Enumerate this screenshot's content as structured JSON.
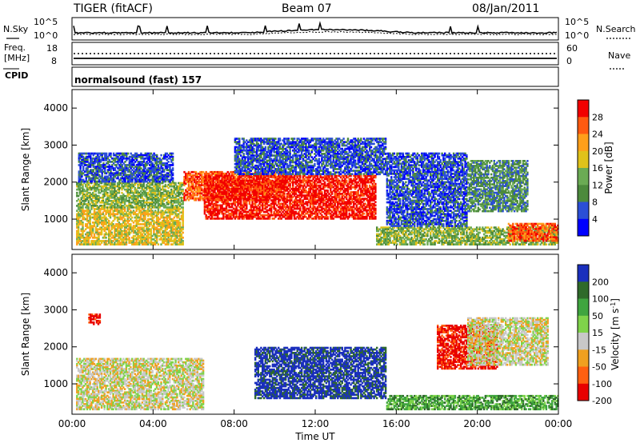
{
  "header": {
    "radar": "TIGER (fitACF)",
    "beam": "Beam 07",
    "date": "08/Jan/2011"
  },
  "side_labels": {
    "nsky": "N.Sky",
    "nsearch": "N.Search",
    "freq": "Freq.",
    "freq_unit": "[MHz]",
    "nave": "Nave",
    "cpid": "CPID"
  },
  "panel_ticks": {
    "noise_left_top": "10^5",
    "noise_left_bottom": "10^0",
    "noise_right_top": "10^5",
    "noise_right_bottom": "10^0",
    "freq_left_top": "18",
    "freq_left_bottom": "8",
    "nave_right_top": "60",
    "nave_right_bottom": "0"
  },
  "cpid_text": "normalsound (fast) 157",
  "chart_data": [
    {
      "type": "heatmap",
      "name": "power",
      "xlabel": "Time UT",
      "ylabel": "Slant Range [km]",
      "x_ticks": [
        "00:00",
        "04:00",
        "08:00",
        "12:00",
        "16:00",
        "20:00",
        "00:00"
      ],
      "xlim_hours": [
        0,
        24
      ],
      "y_ticks": [
        "1000",
        "2000",
        "3000",
        "4000"
      ],
      "ylim": [
        180,
        4500
      ],
      "colorbar": {
        "label": "Power [dB]",
        "ticks": [
          "4",
          "8",
          "12",
          "16",
          "20",
          "24",
          "28"
        ],
        "range": [
          0,
          30
        ],
        "colors": [
          "#0000ff",
          "#2b4fd6",
          "#4c8a3c",
          "#6bab54",
          "#e0c21a",
          "#ff9f1a",
          "#ff5a10",
          "#f20000"
        ]
      },
      "regions": [
        {
          "t": [
            0.2,
            5.5
          ],
          "r": [
            300,
            1300
          ],
          "level": 4
        },
        {
          "t": [
            0.2,
            5.5
          ],
          "r": [
            1300,
            2000
          ],
          "level": 3
        },
        {
          "t": [
            0.3,
            5.0
          ],
          "r": [
            2000,
            2800
          ],
          "level": 1
        },
        {
          "t": [
            5.5,
            10.5
          ],
          "r": [
            1500,
            2300
          ],
          "level": 6
        },
        {
          "t": [
            6.5,
            15.0
          ],
          "r": [
            1000,
            2200
          ],
          "level": 7
        },
        {
          "t": [
            8.0,
            15.5
          ],
          "r": [
            2200,
            3200
          ],
          "level": 1
        },
        {
          "t": [
            15.0,
            24.0
          ],
          "r": [
            300,
            800
          ],
          "level": 3
        },
        {
          "t": [
            21.5,
            24.0
          ],
          "r": [
            400,
            900
          ],
          "level": 6
        },
        {
          "t": [
            15.5,
            19.5
          ],
          "r": [
            800,
            2800
          ],
          "level": 1
        },
        {
          "t": [
            19.5,
            22.5
          ],
          "r": [
            1200,
            2600
          ],
          "level": 2
        }
      ]
    },
    {
      "type": "heatmap",
      "name": "velocity",
      "xlabel": "Time UT",
      "ylabel": "Slant Range [km]",
      "x_ticks": [
        "00:00",
        "04:00",
        "08:00",
        "12:00",
        "16:00",
        "20:00",
        "00:00"
      ],
      "xlim_hours": [
        0,
        24
      ],
      "y_ticks": [
        "1000",
        "2000",
        "3000",
        "4000"
      ],
      "ylim": [
        180,
        4500
      ],
      "colorbar": {
        "label": "Velocity [m s^-1]",
        "ticks": [
          "200",
          "100",
          "50",
          "15",
          "-15",
          "-50",
          "-100",
          "-200"
        ],
        "range": [
          -250,
          250
        ],
        "colors": [
          "#1a2fbd",
          "#2f6a2a",
          "#3fa53f",
          "#7fd34a",
          "#c8c8c8",
          "#f0a020",
          "#ff6010",
          "#e80000"
        ]
      },
      "regions": [
        {
          "t": [
            0.2,
            6.5
          ],
          "r": [
            300,
            1700
          ],
          "level": 4
        },
        {
          "t": [
            9.0,
            15.5
          ],
          "r": [
            600,
            2000
          ],
          "level": 0
        },
        {
          "t": [
            15.5,
            24.0
          ],
          "r": [
            300,
            700
          ],
          "level": 2
        },
        {
          "t": [
            18.0,
            21.0
          ],
          "r": [
            1400,
            2600
          ],
          "level": 7
        },
        {
          "t": [
            19.5,
            23.5
          ],
          "r": [
            1500,
            2800
          ],
          "level": 4
        },
        {
          "t": [
            0.8,
            1.4
          ],
          "r": [
            2600,
            2900
          ],
          "level": 7
        }
      ]
    }
  ],
  "colors": {
    "frame": "#000000",
    "background": "#ffffff",
    "trace": "#000000"
  }
}
